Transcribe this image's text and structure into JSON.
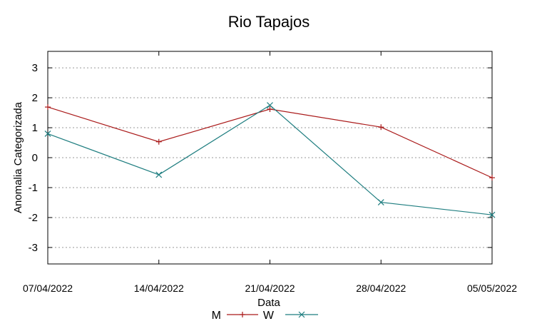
{
  "chart_data": {
    "type": "line",
    "title": "Rio Tapajos",
    "xlabel": "Data",
    "ylabel": "Anomalia Categorizada",
    "categories": [
      "07/04/2022",
      "14/04/2022",
      "21/04/2022",
      "28/04/2022",
      "05/05/2022"
    ],
    "yticks": [
      3,
      2,
      1,
      0,
      -1,
      -2,
      -3
    ],
    "ylim": [
      -3.55,
      3.55
    ],
    "grid": "horizontal dotted",
    "legend_position": "bottom",
    "series": [
      {
        "name": "M",
        "color": "#aa1a1a",
        "marker": "plus",
        "values": [
          1.69,
          0.53,
          1.62,
          1.02,
          -0.67
        ]
      },
      {
        "name": "W",
        "color": "#1f7e80",
        "marker": "cross",
        "values": [
          0.8,
          -0.57,
          1.75,
          -1.49,
          -1.91
        ]
      }
    ]
  }
}
